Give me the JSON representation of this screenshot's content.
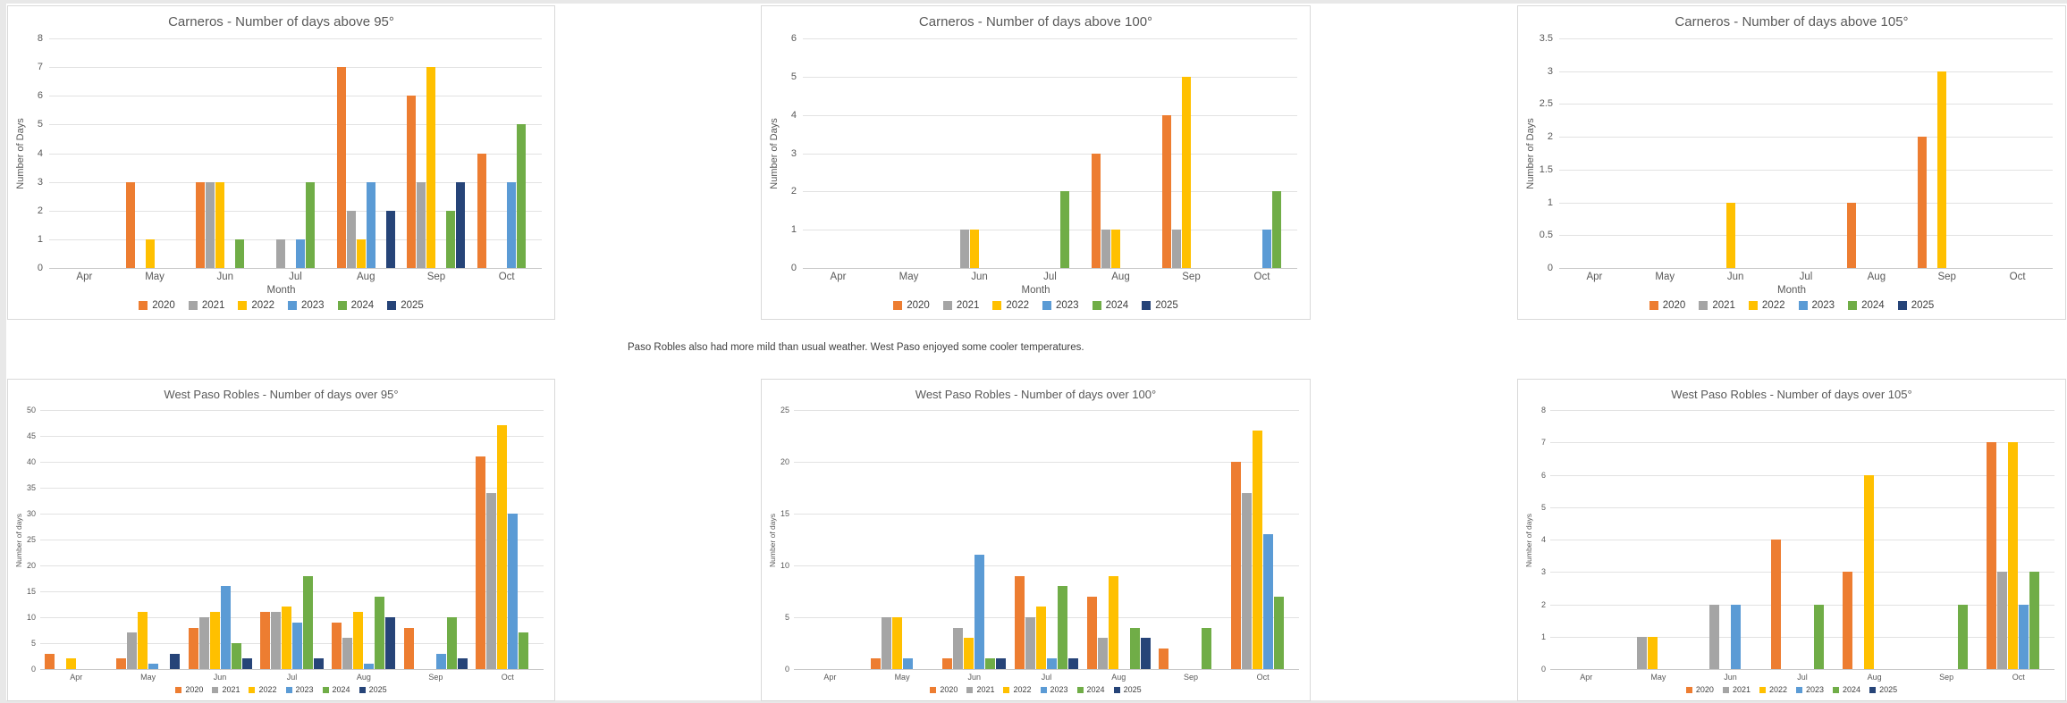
{
  "page": {
    "note_text": "Paso Robles also had more mild than usual weather. West Paso enjoyed some cooler temperatures."
  },
  "colors": {
    "2020": "#ED7D31",
    "2021": "#A5A5A5",
    "2022": "#FFC000",
    "2023": "#5B9BD5",
    "2024": "#70AD47",
    "2025": "#264478",
    "gridline": "#E2E2E2",
    "axis_text": "#595959",
    "title_text": "#595959",
    "legend_text": "#404040"
  },
  "legend_years": [
    "2020",
    "2021",
    "2022",
    "2023",
    "2024",
    "2025"
  ],
  "chart_data": [
    {
      "type": "bar",
      "title": "Carneros - Number of days above 95°",
      "categories": [
        "Apr",
        "May",
        "Jun",
        "Jul",
        "Aug",
        "Sep",
        "Oct"
      ],
      "series": [
        {
          "name": "2020",
          "values": [
            0,
            3,
            3,
            0,
            7,
            6,
            4
          ]
        },
        {
          "name": "2021",
          "values": [
            0,
            0,
            3,
            1,
            2,
            3,
            0
          ]
        },
        {
          "name": "2022",
          "values": [
            0,
            1,
            3,
            0,
            1,
            7,
            0
          ]
        },
        {
          "name": "2023",
          "values": [
            0,
            0,
            0,
            1,
            3,
            0,
            3
          ]
        },
        {
          "name": "2024",
          "values": [
            0,
            0,
            1,
            3,
            0,
            2,
            5
          ]
        },
        {
          "name": "2025",
          "values": [
            0,
            0,
            0,
            0,
            2,
            3,
            0
          ]
        }
      ],
      "ylim": [
        0,
        8
      ],
      "ytick_step": 1,
      "ylabel": "Number of Days",
      "xlabel": "Month",
      "legend_position": "bottom",
      "grid": true
    },
    {
      "type": "bar",
      "title": "Carneros - Number of days above 100°",
      "categories": [
        "Apr",
        "May",
        "Jun",
        "Jul",
        "Aug",
        "Sep",
        "Oct"
      ],
      "series": [
        {
          "name": "2020",
          "values": [
            0,
            0,
            0,
            0,
            3,
            4,
            0
          ]
        },
        {
          "name": "2021",
          "values": [
            0,
            0,
            1,
            0,
            1,
            1,
            0
          ]
        },
        {
          "name": "2022",
          "values": [
            0,
            0,
            1,
            0,
            1,
            5,
            0
          ]
        },
        {
          "name": "2023",
          "values": [
            0,
            0,
            0,
            0,
            0,
            0,
            1
          ]
        },
        {
          "name": "2024",
          "values": [
            0,
            0,
            0,
            2,
            0,
            0,
            2
          ]
        },
        {
          "name": "2025",
          "values": [
            0,
            0,
            0,
            0,
            0,
            0,
            0
          ]
        }
      ],
      "ylim": [
        0,
        6
      ],
      "ytick_step": 1,
      "ylabel": "Number of Days",
      "xlabel": "Month",
      "legend_position": "bottom",
      "grid": true
    },
    {
      "type": "bar",
      "title": "Carneros - Number of days above 105°",
      "categories": [
        "Apr",
        "May",
        "Jun",
        "Jul",
        "Aug",
        "Sep",
        "Oct"
      ],
      "series": [
        {
          "name": "2020",
          "values": [
            0,
            0,
            0,
            0,
            1,
            2,
            0
          ]
        },
        {
          "name": "2021",
          "values": [
            0,
            0,
            0,
            0,
            0,
            0,
            0
          ]
        },
        {
          "name": "2022",
          "values": [
            0,
            0,
            1,
            0,
            0,
            3,
            0
          ]
        },
        {
          "name": "2023",
          "values": [
            0,
            0,
            0,
            0,
            0,
            0,
            0
          ]
        },
        {
          "name": "2024",
          "values": [
            0,
            0,
            0,
            0,
            0,
            0,
            0
          ]
        },
        {
          "name": "2025",
          "values": [
            0,
            0,
            0,
            0,
            0,
            0,
            0
          ]
        }
      ],
      "ylim": [
        0,
        3.5
      ],
      "ytick_step": 0.5,
      "ylabel": "Number of Days",
      "xlabel": "Month",
      "legend_position": "bottom",
      "grid": true
    },
    {
      "type": "bar",
      "title": "West Paso Robles - Number of days over 95°",
      "categories": [
        "Apr",
        "May",
        "Jun",
        "Jul",
        "Aug",
        "Sep",
        "Oct"
      ],
      "series": [
        {
          "name": "2020",
          "values": [
            3,
            2,
            8,
            11,
            9,
            8,
            41
          ]
        },
        {
          "name": "2021",
          "values": [
            0,
            7,
            10,
            11,
            6,
            0,
            34
          ]
        },
        {
          "name": "2022",
          "values": [
            2,
            11,
            11,
            12,
            11,
            0,
            47
          ]
        },
        {
          "name": "2023",
          "values": [
            0,
            1,
            16,
            9,
            1,
            3,
            30
          ]
        },
        {
          "name": "2024",
          "values": [
            0,
            0,
            5,
            18,
            14,
            10,
            7
          ]
        },
        {
          "name": "2025",
          "values": [
            0,
            3,
            2,
            2,
            10,
            2,
            0
          ]
        }
      ],
      "ylim": [
        0,
        50
      ],
      "ytick_step": 5,
      "ylabel": "Number of days",
      "xlabel": "",
      "legend_position": "bottom",
      "grid": true
    },
    {
      "type": "bar",
      "title": "West Paso Robles - Number of days over 100°",
      "categories": [
        "Apr",
        "May",
        "Jun",
        "Jul",
        "Aug",
        "Sep",
        "Oct"
      ],
      "series": [
        {
          "name": "2020",
          "values": [
            0,
            1,
            1,
            9,
            7,
            2,
            20
          ]
        },
        {
          "name": "2021",
          "values": [
            0,
            5,
            4,
            5,
            3,
            0,
            17
          ]
        },
        {
          "name": "2022",
          "values": [
            0,
            5,
            3,
            6,
            9,
            0,
            23
          ]
        },
        {
          "name": "2023",
          "values": [
            0,
            1,
            11,
            1,
            0,
            0,
            13
          ]
        },
        {
          "name": "2024",
          "values": [
            0,
            0,
            1,
            8,
            4,
            4,
            7
          ]
        },
        {
          "name": "2025",
          "values": [
            0,
            0,
            1,
            1,
            3,
            0,
            0
          ]
        }
      ],
      "ylim": [
        0,
        25
      ],
      "ytick_step": 5,
      "ylabel": "Number of days",
      "xlabel": "",
      "legend_position": "bottom",
      "grid": true
    },
    {
      "type": "bar",
      "title": "West Paso Robles - Number of days over 105°",
      "categories": [
        "Apr",
        "May",
        "Jun",
        "Jul",
        "Aug",
        "Sep",
        "Oct"
      ],
      "series": [
        {
          "name": "2020",
          "values": [
            0,
            0,
            0,
            4,
            3,
            0,
            7
          ]
        },
        {
          "name": "2021",
          "values": [
            0,
            1,
            2,
            0,
            0,
            0,
            3
          ]
        },
        {
          "name": "2022",
          "values": [
            0,
            1,
            0,
            0,
            6,
            0,
            7
          ]
        },
        {
          "name": "2023",
          "values": [
            0,
            0,
            2,
            0,
            0,
            0,
            2
          ]
        },
        {
          "name": "2024",
          "values": [
            0,
            0,
            0,
            2,
            0,
            2,
            3
          ]
        },
        {
          "name": "2025",
          "values": [
            0,
            0,
            0,
            0,
            0,
            0,
            0
          ]
        }
      ],
      "ylim": [
        0,
        8
      ],
      "ytick_step": 1,
      "ylabel": "Number of days",
      "xlabel": "",
      "legend_position": "bottom",
      "grid": true
    }
  ]
}
